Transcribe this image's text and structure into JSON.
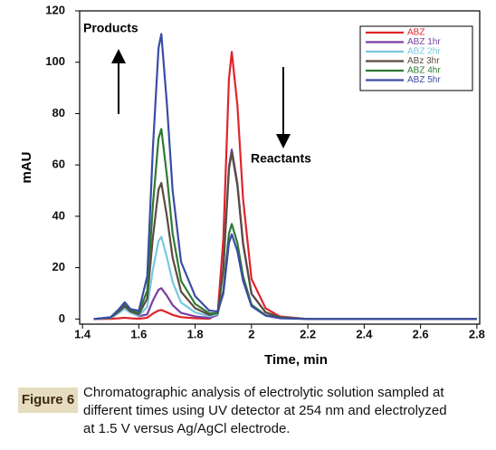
{
  "chart_data": {
    "type": "line",
    "x_label": "Time, min",
    "y_label": "mAU",
    "annotations": [
      "Products",
      "Reactants"
    ],
    "xlim": [
      1.39,
      2.81
    ],
    "ylim": [
      -2,
      120
    ],
    "xticks": [
      1.4,
      1.6,
      1.8,
      2,
      2.2,
      2.4,
      2.6,
      2.8
    ],
    "yticks": [
      0,
      20,
      40,
      60,
      80,
      100,
      120
    ],
    "legend": "upper right",
    "x": [
      1.44,
      1.5,
      1.53,
      1.55,
      1.57,
      1.6,
      1.63,
      1.65,
      1.67,
      1.68,
      1.7,
      1.72,
      1.75,
      1.8,
      1.85,
      1.88,
      1.9,
      1.92,
      1.93,
      1.95,
      1.97,
      2.0,
      2.05,
      2.1,
      2.2,
      2.4,
      2.6,
      2.8
    ],
    "series": [
      {
        "name": "ABZ",
        "color": "#e0242a",
        "values": [
          0,
          0.05,
          0.3,
          0.5,
          0.3,
          0.1,
          0.5,
          2.1,
          3.3,
          3.5,
          2.6,
          1.6,
          0.7,
          0.3,
          0.1,
          2.2,
          31.2,
          93.6,
          104,
          83.2,
          46.8,
          15.6,
          4.2,
          1,
          0,
          0,
          0,
          0
        ]
      },
      {
        "name": "ABZ 1hr",
        "color": "#7b3fa0",
        "values": [
          0,
          0.5,
          3,
          5,
          3,
          1,
          1.8,
          7.2,
          11.4,
          12,
          9,
          5.4,
          2.4,
          1,
          0.4,
          1.6,
          19.8,
          59.4,
          66,
          52.8,
          29.7,
          9.9,
          2.6,
          0.7,
          0,
          0,
          0,
          0
        ]
      },
      {
        "name": "ABZ 2hr",
        "color": "#78c8e0",
        "values": [
          0,
          0.4,
          2.4,
          4,
          2.4,
          1.2,
          4.8,
          19.2,
          30.4,
          32,
          24,
          14.4,
          6.4,
          2.6,
          1,
          1.9,
          19.5,
          58.5,
          65,
          52,
          29.3,
          9.8,
          2.6,
          0.7,
          0,
          0,
          0,
          0
        ]
      },
      {
        "name": "ABz 3hr",
        "color": "#5c4a40",
        "values": [
          0,
          0.5,
          3,
          5,
          3,
          1.8,
          8,
          31.8,
          50.4,
          53,
          39.8,
          23.9,
          10.6,
          4.2,
          1.6,
          2.4,
          19.5,
          58.5,
          65,
          52,
          29.3,
          9.8,
          2.6,
          0.7,
          0,
          0,
          0,
          0
        ]
      },
      {
        "name": "ABZ 4hr",
        "color": "#2f7a34",
        "values": [
          0,
          0.6,
          3.6,
          6,
          3.6,
          2.4,
          11.1,
          44.4,
          70.3,
          74,
          55.5,
          33.3,
          14.8,
          5.9,
          2.2,
          2.2,
          11.1,
          33.3,
          37,
          29.6,
          16.7,
          5.6,
          1.5,
          0.4,
          0,
          0,
          0,
          0
        ]
      },
      {
        "name": "ABZ 5hr",
        "color": "#3a4ca4",
        "values": [
          0,
          0.7,
          3.9,
          6.5,
          3.9,
          3.2,
          16.7,
          66.6,
          105.5,
          111,
          83.3,
          50,
          22.2,
          8.9,
          3.3,
          2.9,
          9.9,
          29.7,
          33,
          26.4,
          14.9,
          5,
          1.3,
          0.3,
          0,
          0,
          0,
          0
        ]
      }
    ]
  },
  "figure": {
    "label": "Figure 6",
    "caption_lines": [
      "Chromatographic analysis of electrolytic solution sampled at",
      "different times using UV detector at 254 nm and electrolyzed",
      "at 1.5 V versus Ag/AgCl electrode."
    ]
  }
}
